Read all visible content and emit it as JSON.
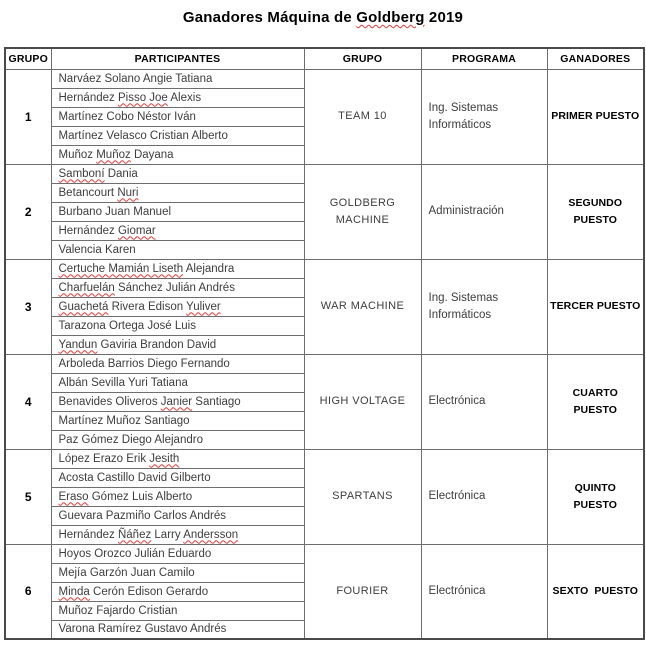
{
  "title": {
    "prefix": "Ganadores Máquina de ",
    "misspelled_word": "Goldberg",
    "suffix": " 2019"
  },
  "colors": {
    "spellcheck_squiggle": "#e03b3b",
    "border": "#6e6e6e",
    "body_text": "#3d3d3d",
    "bold_text": "#000000"
  },
  "table": {
    "headers": [
      "GRUPO",
      "PARTICIPANTES",
      "GRUPO",
      "PROGRAMA",
      "GANADORES"
    ],
    "groups": [
      {
        "number": "1",
        "team": "TEAM 10",
        "program": "Ing. Sistemas Informáticos",
        "winner": "PRIMER PUESTO",
        "participants": [
          [
            {
              "t": "Narváez Solano Angie Tatiana",
              "m": false
            }
          ],
          [
            {
              "t": "Hernández ",
              "m": false
            },
            {
              "t": "Pisso Joe",
              "m": true
            },
            {
              "t": " Alexis",
              "m": false
            }
          ],
          [
            {
              "t": "Martínez Cobo Néstor Iván",
              "m": false
            }
          ],
          [
            {
              "t": "Martínez Velasco Cristian Alberto",
              "m": false
            }
          ],
          [
            {
              "t": "Muñoz ",
              "m": false
            },
            {
              "t": "Muñoz",
              "m": true
            },
            {
              "t": " Dayana",
              "m": false
            }
          ]
        ]
      },
      {
        "number": "2",
        "team": "GOLDBERG\nMACHINE",
        "program": "Administración",
        "winner": "SEGUNDO\nPUESTO",
        "participants": [
          [
            {
              "t": "Samboní",
              "m": true
            },
            {
              "t": " Dania",
              "m": false
            }
          ],
          [
            {
              "t": "Betancourt ",
              "m": false
            },
            {
              "t": "Nuri",
              "m": true
            }
          ],
          [
            {
              "t": "Burbano Juan Manuel",
              "m": false
            }
          ],
          [
            {
              "t": "Hernández ",
              "m": false
            },
            {
              "t": "Giomar",
              "m": true
            }
          ],
          [
            {
              "t": "Valencia Karen",
              "m": false
            }
          ]
        ]
      },
      {
        "number": "3",
        "team": "WAR MACHINE",
        "program": "Ing. Sistemas Informáticos",
        "winner": "TERCER PUESTO",
        "participants": [
          [
            {
              "t": "Certuche Mamián Liseth",
              "m": true
            },
            {
              "t": " Alejandra",
              "m": false
            }
          ],
          [
            {
              "t": "Charfuelán",
              "m": true
            },
            {
              "t": " Sánchez Julián Andrés",
              "m": false
            }
          ],
          [
            {
              "t": "Guachetá",
              "m": true
            },
            {
              "t": " Rivera Edison ",
              "m": false
            },
            {
              "t": "Yuliver",
              "m": true
            }
          ],
          [
            {
              "t": "Tarazona Ortega José Luis",
              "m": false
            }
          ],
          [
            {
              "t": "Yandun",
              "m": true
            },
            {
              "t": " Gaviria Brandon David",
              "m": false
            }
          ]
        ]
      },
      {
        "number": "4",
        "team": "HIGH VOLTAGE",
        "program": "Electrónica",
        "winner": "CUARTO\nPUESTO",
        "participants": [
          [
            {
              "t": "Arboleda Barrios Diego Fernando",
              "m": false
            }
          ],
          [
            {
              "t": "Albán Sevilla Yuri Tatiana",
              "m": false
            }
          ],
          [
            {
              "t": "Benavides Oliveros ",
              "m": false
            },
            {
              "t": "Janier",
              "m": true
            },
            {
              "t": " Santiago",
              "m": false
            }
          ],
          [
            {
              "t": "Martínez Muñoz Santiago",
              "m": false
            }
          ],
          [
            {
              "t": "Paz Gómez Diego Alejandro",
              "m": false
            }
          ]
        ]
      },
      {
        "number": "5",
        "team": "SPARTANS",
        "program": "Electrónica",
        "winner": "QUINTO\nPUESTO",
        "participants": [
          [
            {
              "t": "López Erazo Erik ",
              "m": false
            },
            {
              "t": "Jesith",
              "m": true
            }
          ],
          [
            {
              "t": "Acosta Castillo David Gilberto",
              "m": false
            }
          ],
          [
            {
              "t": "Eraso",
              "m": true
            },
            {
              "t": " Gómez Luis Alberto",
              "m": false
            }
          ],
          [
            {
              "t": "Guevara Pazmiño Carlos Andrés",
              "m": false
            }
          ],
          [
            {
              "t": "Hernández ",
              "m": false
            },
            {
              "t": "Ñáñez",
              "m": true
            },
            {
              "t": " Larry ",
              "m": false
            },
            {
              "t": "Andersson",
              "m": true
            }
          ]
        ]
      },
      {
        "number": "6",
        "team": "FOURIER",
        "program": "Electrónica",
        "winner": "SEXTO  PUESTO",
        "participants": [
          [
            {
              "t": "Hoyos Orozco Julián Eduardo",
              "m": false
            }
          ],
          [
            {
              "t": "Mejía Garzón Juan Camilo",
              "m": false
            }
          ],
          [
            {
              "t": "Minda",
              "m": true
            },
            {
              "t": " Cerón Edison Gerardo",
              "m": false
            }
          ],
          [
            {
              "t": "Muñoz Fajardo Cristian",
              "m": false
            }
          ],
          [
            {
              "t": "Varona Ramírez Gustavo Andrés",
              "m": false
            }
          ]
        ]
      }
    ]
  }
}
